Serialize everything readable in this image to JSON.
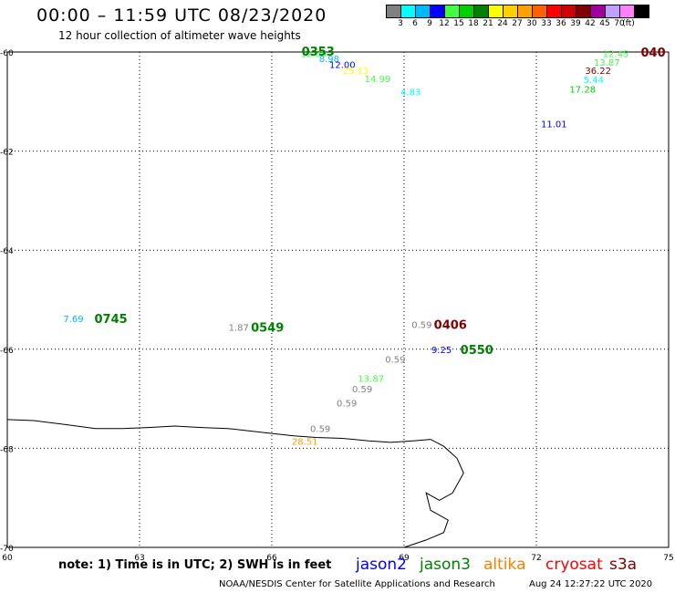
{
  "header": {
    "title": "00:00 – 11:59 UTC 08/23/2020",
    "subtitle": "12 hour collection of altimeter wave heights"
  },
  "colorbar": {
    "colors": [
      "#808080",
      "#00ffff",
      "#00b8ff",
      "#0000ff",
      "#40ff40",
      "#00d000",
      "#008000",
      "#ffff00",
      "#ffd000",
      "#ffa000",
      "#ff6000",
      "#ff0000",
      "#d00000",
      "#800000",
      "#a000a0",
      "#c0a0ff",
      "#ff80ff",
      "#000000"
    ],
    "labels": [
      "3",
      "6",
      "9",
      "12",
      "15",
      "18",
      "21",
      "24",
      "27",
      "30",
      "33",
      "36",
      "39",
      "42",
      "45",
      "70",
      "(ft)"
    ]
  },
  "axes": {
    "lon_min": 60,
    "lon_max": 75,
    "lat_min": -70,
    "lat_max": -60,
    "y_ticks": [
      {
        "value": -60,
        "label": "-60"
      },
      {
        "value": -62,
        "label": "-62"
      },
      {
        "value": -64,
        "label": "-64"
      },
      {
        "value": -66,
        "label": "-66"
      },
      {
        "value": -68,
        "label": "-68"
      },
      {
        "value": -70,
        "label": "-70"
      }
    ],
    "x_ticks": [
      {
        "value": 60,
        "label": "60"
      },
      {
        "value": 63,
        "label": "63"
      },
      {
        "value": 66,
        "label": "66"
      },
      {
        "value": 69,
        "label": "69"
      },
      {
        "value": 72,
        "label": "72"
      },
      {
        "value": 75,
        "label": "75"
      }
    ]
  },
  "observations": [
    {
      "lon": 66.95,
      "lat": -60.03,
      "text": "12.09",
      "color": "#40ff40"
    },
    {
      "lon": 67.3,
      "lat": -60.13,
      "text": "8.98",
      "color": "#00b8ff"
    },
    {
      "lon": 67.6,
      "lat": -60.25,
      "text": "12.00",
      "color": "#0000ff"
    },
    {
      "lon": 67.9,
      "lat": -60.37,
      "text": "25.13",
      "color": "#ffff00"
    },
    {
      "lon": 68.4,
      "lat": -60.53,
      "text": "14.99",
      "color": "#40ff40"
    },
    {
      "lon": 69.15,
      "lat": -60.8,
      "text": "4.83",
      "color": "#00ffff"
    },
    {
      "lon": 73.8,
      "lat": -60.03,
      "text": "12.45",
      "color": "#40ff40"
    },
    {
      "lon": 73.6,
      "lat": -60.2,
      "text": "13.87",
      "color": "#40ff40"
    },
    {
      "lon": 73.4,
      "lat": -60.37,
      "text": "36.22",
      "color": "#800000"
    },
    {
      "lon": 73.3,
      "lat": -60.55,
      "text": "5.44",
      "color": "#00ffff"
    },
    {
      "lon": 73.05,
      "lat": -60.75,
      "text": "17.28",
      "color": "#00d000"
    },
    {
      "lon": 72.4,
      "lat": -61.45,
      "text": "11.01",
      "color": "#0000ff"
    },
    {
      "lon": 61.5,
      "lat": -65.38,
      "text": "7.69",
      "color": "#00b8ff"
    },
    {
      "lon": 65.25,
      "lat": -65.55,
      "text": "1.87",
      "color": "#808080"
    },
    {
      "lon": 69.4,
      "lat": -65.5,
      "text": "0.59",
      "color": "#808080"
    },
    {
      "lon": 69.85,
      "lat": -66.0,
      "text": "9.25",
      "color": "#0000ff"
    },
    {
      "lon": 68.8,
      "lat": -66.2,
      "text": "0.59",
      "color": "#808080"
    },
    {
      "lon": 68.25,
      "lat": -66.58,
      "text": "13.87",
      "color": "#40ff40"
    },
    {
      "lon": 68.05,
      "lat": -66.8,
      "text": "0.59",
      "color": "#808080"
    },
    {
      "lon": 67.7,
      "lat": -67.08,
      "text": "0.59",
      "color": "#808080"
    },
    {
      "lon": 67.1,
      "lat": -67.6,
      "text": "0.59",
      "color": "#808080"
    },
    {
      "lon": 66.75,
      "lat": -67.85,
      "text": "28.51",
      "color": "#ffa000"
    }
  ],
  "pass_labels": [
    {
      "lon": 67.05,
      "lat": -59.98,
      "text": "0353",
      "color": "#008000"
    },
    {
      "lon": 74.65,
      "lat": -60.0,
      "text": "040",
      "color": "#800000"
    },
    {
      "lon": 62.35,
      "lat": -65.38,
      "text": "0745",
      "color": "#008000"
    },
    {
      "lon": 65.9,
      "lat": -65.55,
      "text": "0549",
      "color": "#008000"
    },
    {
      "lon": 70.05,
      "lat": -65.5,
      "text": "0406",
      "color": "#800000"
    },
    {
      "lon": 70.65,
      "lat": -66.0,
      "text": "0550",
      "color": "#008000"
    }
  ],
  "coastline": [
    [
      60.0,
      -67.42
    ],
    [
      60.6,
      -67.44
    ],
    [
      61.3,
      -67.52
    ],
    [
      62.0,
      -67.6
    ],
    [
      62.6,
      -67.6
    ],
    [
      63.2,
      -67.58
    ],
    [
      63.8,
      -67.55
    ],
    [
      64.4,
      -67.58
    ],
    [
      65.0,
      -67.6
    ],
    [
      65.5,
      -67.65
    ],
    [
      66.0,
      -67.7
    ],
    [
      66.5,
      -67.75
    ],
    [
      67.0,
      -67.78
    ],
    [
      67.6,
      -67.8
    ],
    [
      68.2,
      -67.85
    ],
    [
      68.7,
      -67.88
    ],
    [
      69.2,
      -67.85
    ],
    [
      69.6,
      -67.82
    ],
    [
      69.9,
      -67.96
    ],
    [
      70.2,
      -68.2
    ],
    [
      70.35,
      -68.5
    ],
    [
      70.1,
      -68.9
    ],
    [
      69.8,
      -69.05
    ],
    [
      69.5,
      -68.9
    ],
    [
      69.6,
      -69.25
    ],
    [
      70.0,
      -69.45
    ],
    [
      69.9,
      -69.7
    ],
    [
      69.5,
      -69.85
    ],
    [
      69.0,
      -70.0
    ]
  ],
  "footer": {
    "note": "note: 1) Time is in UTC; 2) SWH is in feet",
    "satellites": [
      {
        "name": "jason2",
        "color": "#0000ff"
      },
      {
        "name": "jason3",
        "color": "#008000"
      },
      {
        "name": "altika",
        "color": "#ff8000"
      },
      {
        "name": "cryosat",
        "color": "#ff0000"
      },
      {
        "name": "s3a",
        "color": "#800000"
      }
    ],
    "credit": "NOAA/NESDIS Center for Satellite Applications and Research",
    "timestamp": "Aug 24 12:27:22 UTC 2020"
  }
}
